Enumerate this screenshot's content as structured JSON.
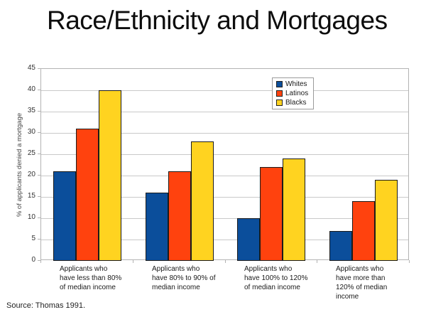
{
  "slide": {
    "title": "Race/Ethnicity and Mortgages",
    "source": "Source: Thomas 1991."
  },
  "chart_data": {
    "type": "bar",
    "title": "Race/Ethnicity and Mortgages",
    "xlabel": "",
    "ylabel": "% of applicants denied a mortgage",
    "ylim": [
      0,
      45
    ],
    "yticks": [
      0,
      5,
      10,
      15,
      20,
      25,
      30,
      35,
      40,
      45
    ],
    "grid": true,
    "legend_position": "top-right-inside",
    "categories": [
      "Applicants who have less than 80% of median income",
      "Applicants who have 80% to 90% of median income",
      "Applicants who have 100% to 120% of median income",
      "Applicants who have more than 120% of median income"
    ],
    "categories_wrapped": [
      "Applicants who\nhave less than 80%\nof median income",
      "Applicants who\nhave 80% to 90% of\nmedian income",
      "Applicants who\nhave 100% to 120%\nof median income",
      "Applicants who\nhave more than\n120% of median\nincome"
    ],
    "series": [
      {
        "name": "Whites",
        "color": "#0b4e9b",
        "values": [
          21,
          16,
          10,
          7
        ]
      },
      {
        "name": "Latinos",
        "color": "#ff420e",
        "values": [
          31,
          21,
          22,
          14
        ]
      },
      {
        "name": "Blacks",
        "color": "#ffd320",
        "values": [
          40,
          28,
          24,
          19
        ]
      }
    ],
    "style_colors": {
      "gridline": "#c9c9c9",
      "plot_border": "#b3b3b3",
      "bar_outline": "#1b1b1b",
      "background": "#ffffff"
    }
  }
}
